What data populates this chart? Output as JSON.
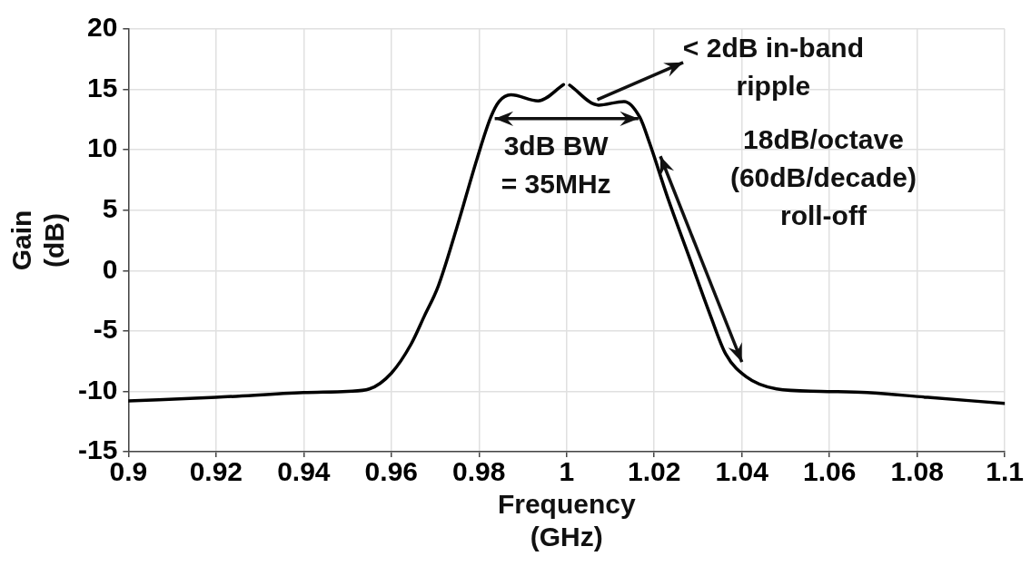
{
  "chart_data": {
    "type": "line",
    "xlabel": "Frequency (GHz)",
    "ylabel": "Gain (dB)",
    "x": [
      0.9,
      0.92,
      0.94,
      0.95,
      0.955,
      0.96,
      0.9645,
      0.9675,
      0.9707,
      0.9749,
      0.9796,
      0.9827,
      0.9846,
      0.9873,
      0.9935,
      0.9993,
      1.0,
      1.0007,
      1.0073,
      1.0131,
      1.0167,
      1.0189,
      1.0231,
      1.028,
      1.0328,
      1.0363,
      1.041,
      1.0479,
      1.058,
      1.0686,
      1.0824,
      1.1
    ],
    "series": [
      {
        "color": "#000000",
        "values": [
          -10.8,
          -10.5,
          -10.1,
          -10.0,
          -9.8,
          -8.5,
          -6.1,
          -3.8,
          -1.3,
          3.5,
          9.3,
          12.7,
          14.0,
          14.55,
          14.05,
          15.4,
          null,
          15.35,
          13.7,
          14.0,
          12.7,
          10.6,
          6.0,
          1.1,
          -3.7,
          -6.9,
          -8.8,
          -9.8,
          -10.0,
          -10.1,
          -10.5,
          -11.0
        ]
      }
    ],
    "xlim": [
      0.9,
      1.1
    ],
    "xticks": [
      0.9,
      0.92,
      0.94,
      0.96,
      0.98,
      1,
      1.02,
      1.04,
      1.06,
      1.08,
      1.1
    ],
    "ylim": [
      -15,
      20
    ],
    "yticks": [
      -15,
      -10,
      -5,
      0,
      5,
      10,
      15,
      20
    ],
    "grid": true,
    "legend": false,
    "marker": "none",
    "line_style": "solid",
    "annotations": [
      {
        "text": "< 2dB in-band ripple",
        "x": 1.007,
        "y": 13.7
      },
      "3dB BW = 35MHz",
      "18dB/octave (60dB/decade) roll-off"
    ]
  }
}
